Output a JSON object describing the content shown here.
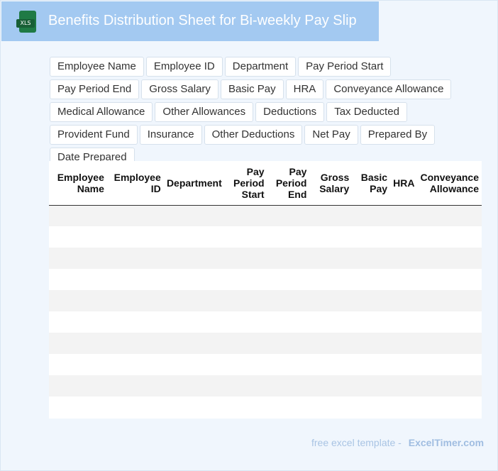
{
  "header": {
    "icon": "xls-file-icon",
    "icon_label": "XLS",
    "title": "Benefits Distribution Sheet for Bi-weekly Pay Slip"
  },
  "fields": [
    "Employee Name",
    "Employee ID",
    "Department",
    "Pay Period Start",
    "Pay Period End",
    "Gross Salary",
    "Basic Pay",
    "HRA",
    "Conveyance Allowance",
    "Medical Allowance",
    "Other Allowances",
    "Deductions",
    "Tax Deducted",
    "Provident Fund",
    "Insurance",
    "Other Deductions",
    "Net Pay",
    "Prepared By",
    "Date Prepared"
  ],
  "table": {
    "columns": [
      "Employee Name",
      "Employee ID",
      "Department",
      "Pay Period Start",
      "Pay Period End",
      "Gross Salary",
      "Basic Pay",
      "HRA",
      "Conveyance Allowance"
    ],
    "row_count": 10
  },
  "footer": {
    "free_text": "free excel template -",
    "brand": "ExcelTimer.com"
  }
}
